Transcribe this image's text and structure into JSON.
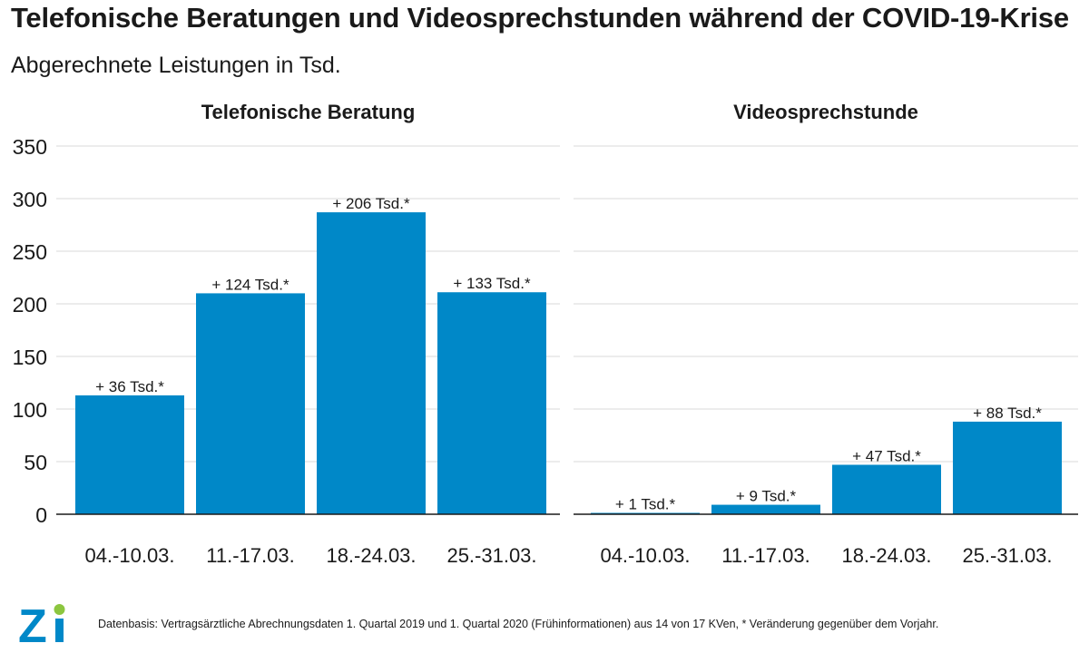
{
  "title": "Telefonische Beratungen und Videosprechstunden während der COVID-19-Krise",
  "subtitle": "Abgerechnete Leistungen in Tsd.",
  "source": "Datenbasis: Vertragsärztliche Abrechnungsdaten 1. Quartal 2019 und 1. Quartal 2020 (Frühinformationen) aus 14 von 17 KVen, * Veränderung gegenüber dem Vorjahr.",
  "logo_text": "Zi",
  "colors": {
    "bar": "#0088c8",
    "grid": "#d9d9d9",
    "axis": "#1a1a1a",
    "logo": "#0088c8",
    "logo_accent": "#8cc63f"
  },
  "chart_data": [
    {
      "type": "bar",
      "title": "Telefonische Beratung",
      "categories": [
        "04.-10.03.",
        "11.-17.03.",
        "18.-24.03.",
        "25.-31.03."
      ],
      "values": [
        113,
        210,
        287,
        211
      ],
      "data_labels": [
        "+ 36 Tsd.*",
        "+ 124 Tsd.*",
        "+ 206 Tsd.*",
        "+ 133 Tsd.*"
      ],
      "ylim": [
        0,
        350
      ],
      "yticks": [
        0,
        50,
        100,
        150,
        200,
        250,
        300,
        350
      ],
      "grid": true
    },
    {
      "type": "bar",
      "title": "Videosprechstunde",
      "categories": [
        "04.-10.03.",
        "11.-17.03.",
        "18.-24.03.",
        "25.-31.03."
      ],
      "values": [
        1,
        9,
        47,
        88
      ],
      "data_labels": [
        "+ 1 Tsd.*",
        "+ 9 Tsd.*",
        "+ 47 Tsd.*",
        "+ 88 Tsd.*"
      ],
      "ylim": [
        0,
        350
      ],
      "yticks": [
        0,
        50,
        100,
        150,
        200,
        250,
        300,
        350
      ],
      "grid": true
    }
  ]
}
